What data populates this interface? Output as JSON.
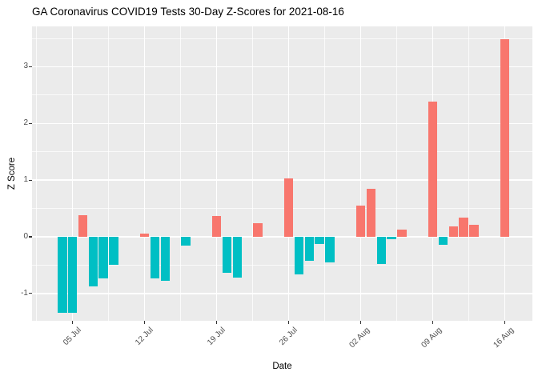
{
  "page": {
    "background": "#FFFFFF"
  },
  "chart_data": {
    "type": "bar",
    "title": "GA Coronavirus COVID19 Tests 30-Day Z-Scores for 2021-08-16",
    "xlabel": "Date",
    "ylabel": "Z Score",
    "legend": "none",
    "grid": true,
    "panel_background": "#EBEBEB",
    "gridline_color": "#FFFFFF",
    "axis_text_color": "#4D4D4D",
    "bar_colors": {
      "positive": "#F8766D",
      "negative": "#00BFC4"
    },
    "ylim": [
      -1.48,
      3.71
    ],
    "y_ticks": [
      -1,
      0,
      1,
      2,
      3
    ],
    "x_ticks": [
      {
        "label": "05 Jul",
        "date": "2021-07-05"
      },
      {
        "label": "12 Jul",
        "date": "2021-07-12"
      },
      {
        "label": "19 Jul",
        "date": "2021-07-19"
      },
      {
        "label": "26 Jul",
        "date": "2021-07-26"
      },
      {
        "label": "02 Aug",
        "date": "2021-08-02"
      },
      {
        "label": "09 Aug",
        "date": "2021-08-09"
      },
      {
        "label": "16 Aug",
        "date": "2021-08-16"
      }
    ],
    "points": [
      {
        "date": "2021-07-04",
        "z": -1.34
      },
      {
        "date": "2021-07-05",
        "z": -1.34
      },
      {
        "date": "2021-07-06",
        "z": 0.38
      },
      {
        "date": "2021-07-07",
        "z": -0.87
      },
      {
        "date": "2021-07-08",
        "z": -0.74
      },
      {
        "date": "2021-07-09",
        "z": -0.49
      },
      {
        "date": "2021-07-12",
        "z": 0.05
      },
      {
        "date": "2021-07-13",
        "z": -0.73
      },
      {
        "date": "2021-07-14",
        "z": -0.77
      },
      {
        "date": "2021-07-16",
        "z": -0.15
      },
      {
        "date": "2021-07-19",
        "z": 0.37
      },
      {
        "date": "2021-07-20",
        "z": -0.64
      },
      {
        "date": "2021-07-21",
        "z": -0.72
      },
      {
        "date": "2021-07-23",
        "z": 0.24
      },
      {
        "date": "2021-07-26",
        "z": 1.03
      },
      {
        "date": "2021-07-27",
        "z": -0.67
      },
      {
        "date": "2021-07-28",
        "z": -0.42
      },
      {
        "date": "2021-07-29",
        "z": -0.12
      },
      {
        "date": "2021-07-30",
        "z": -0.45
      },
      {
        "date": "2021-08-02",
        "z": 0.55
      },
      {
        "date": "2021-08-03",
        "z": 0.85
      },
      {
        "date": "2021-08-04",
        "z": -0.48
      },
      {
        "date": "2021-08-05",
        "z": -0.04
      },
      {
        "date": "2021-08-06",
        "z": 0.13
      },
      {
        "date": "2021-08-09",
        "z": 2.39
      },
      {
        "date": "2021-08-10",
        "z": -0.14
      },
      {
        "date": "2021-08-11",
        "z": 0.19
      },
      {
        "date": "2021-08-12",
        "z": 0.34
      },
      {
        "date": "2021-08-13",
        "z": 0.21
      },
      {
        "date": "2021-08-16",
        "z": 3.49
      }
    ]
  }
}
